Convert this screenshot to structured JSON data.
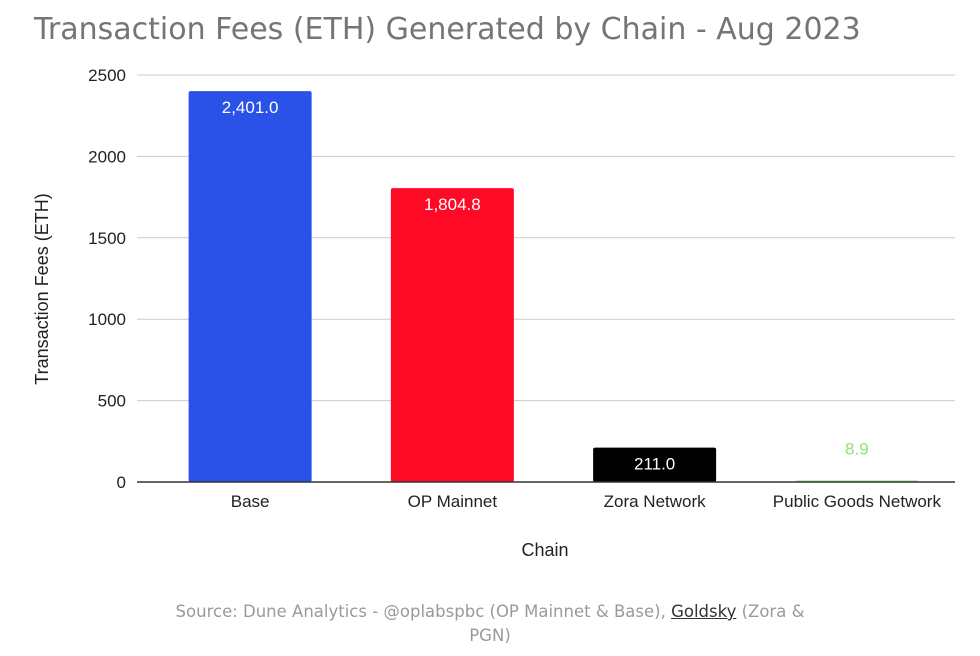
{
  "chart_data": {
    "type": "bar",
    "title": "Transaction Fees (ETH) Generated by Chain - Aug 2023",
    "xlabel": "Chain",
    "ylabel": "Transaction Fees (ETH)",
    "ylim": [
      0,
      2500
    ],
    "yticks": [
      0,
      500,
      1000,
      1500,
      2000,
      2500
    ],
    "grid": true,
    "categories": [
      "Base",
      "OP Mainnet",
      "Zora Network",
      "Public Goods Network"
    ],
    "values": [
      2401.0,
      1804.8,
      211.0,
      8.9
    ],
    "labels": [
      "2,401.0",
      "1,804.8",
      "211.0",
      "8.9"
    ],
    "colors": [
      "#2a52e8",
      "#ff0a26",
      "#000000",
      "#8fe07a"
    ],
    "label_colors": [
      "#ffffff",
      "#ffffff",
      "#ffffff",
      "#8fe07a"
    ]
  },
  "source": {
    "prefix": "Source: Dune Analytics - @oplabspbc (OP Mainnet & Base), ",
    "link_text": "Goldsky",
    "suffix_line1": " (Zora &",
    "line2": "PGN)"
  }
}
